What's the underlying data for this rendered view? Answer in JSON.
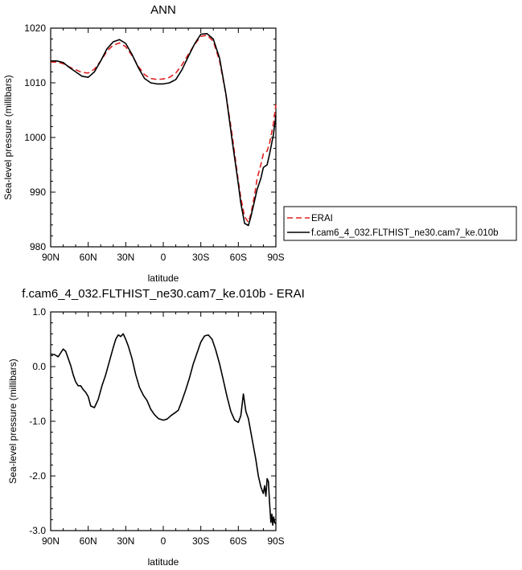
{
  "chart_data": [
    {
      "type": "line",
      "title": "ANN",
      "xlabel": "latitude",
      "ylabel": "Sea-level pressure (millibars)",
      "x_ticks": [
        {
          "x": 90,
          "label": "90N"
        },
        {
          "x": 60,
          "label": "60N"
        },
        {
          "x": 30,
          "label": "30N"
        },
        {
          "x": 0,
          "label": "0"
        },
        {
          "x": -30,
          "label": "30S"
        },
        {
          "x": -60,
          "label": "60S"
        },
        {
          "x": -90,
          "label": "90S"
        }
      ],
      "y_ticks": [
        {
          "y": 1020,
          "label": "1020"
        },
        {
          "y": 1010,
          "label": "1010"
        },
        {
          "y": 1000,
          "label": "1000"
        },
        {
          "y": 990,
          "label": "990"
        },
        {
          "y": 980,
          "label": "980"
        }
      ],
      "xlim": [
        90,
        -90
      ],
      "ylim": [
        980,
        1020
      ],
      "legend_position": "right",
      "series": [
        {
          "name": "ERAI",
          "color": "#e02020",
          "dash": "dashed",
          "x": [
            90,
            85,
            80,
            75,
            70,
            65,
            60,
            55,
            50,
            45,
            40,
            35,
            30,
            25,
            20,
            15,
            10,
            5,
            0,
            -5,
            -10,
            -15,
            -20,
            -25,
            -30,
            -35,
            -40,
            -45,
            -50,
            -55,
            -60,
            -62,
            -65,
            -68,
            -70,
            -73,
            -75,
            -78,
            -80,
            -83,
            -85,
            -88,
            -90
          ],
          "y": [
            1013.8,
            1013.8,
            1013.5,
            1012.9,
            1012.4,
            1011.9,
            1011.8,
            1012.5,
            1014.0,
            1015.8,
            1016.9,
            1017.3,
            1016.6,
            1015.0,
            1013.0,
            1011.5,
            1010.8,
            1010.6,
            1010.7,
            1011.0,
            1011.8,
            1013.3,
            1015.2,
            1017.0,
            1018.5,
            1018.7,
            1017.6,
            1014.0,
            1008.0,
            1000.5,
            992.0,
            989.0,
            985.5,
            984.5,
            986.0,
            989.5,
            992.5,
            995.0,
            997.0,
            997.5,
            999.0,
            1002.5,
            1006.0
          ]
        },
        {
          "name": "f.cam6_4_032.FLTHIST_ne30.cam7_ke.010b",
          "color": "#000000",
          "dash": "solid",
          "x": [
            90,
            85,
            80,
            75,
            70,
            65,
            60,
            55,
            50,
            45,
            40,
            35,
            30,
            25,
            20,
            15,
            10,
            5,
            0,
            -5,
            -10,
            -15,
            -20,
            -25,
            -30,
            -35,
            -40,
            -45,
            -50,
            -55,
            -60,
            -62,
            -65,
            -68,
            -70,
            -73,
            -75,
            -78,
            -80,
            -83,
            -85,
            -88,
            -90
          ],
          "y": [
            1014.0,
            1014.0,
            1013.7,
            1012.8,
            1012.0,
            1011.2,
            1011.0,
            1012.0,
            1014.0,
            1016.2,
            1017.5,
            1017.9,
            1017.2,
            1015.2,
            1012.8,
            1010.8,
            1010.0,
            1009.8,
            1009.8,
            1010.0,
            1010.6,
            1012.4,
            1014.8,
            1017.1,
            1018.9,
            1019.0,
            1018.0,
            1014.5,
            1008.0,
            999.5,
            991.5,
            988.0,
            984.3,
            983.9,
            985.5,
            988.5,
            990.5,
            992.5,
            994.5,
            995.0,
            997.0,
            1000.5,
            1004.0
          ]
        }
      ]
    },
    {
      "type": "line",
      "title": "f.cam6_4_032.FLTHIST_ne30.cam7_ke.010b - ERAI",
      "xlabel": "latitude",
      "ylabel": "Sea-level pressure (millibars)",
      "x_ticks": [
        {
          "x": 90,
          "label": "90N"
        },
        {
          "x": 60,
          "label": "60N"
        },
        {
          "x": 30,
          "label": "30N"
        },
        {
          "x": 0,
          "label": "0"
        },
        {
          "x": -30,
          "label": "30S"
        },
        {
          "x": -60,
          "label": "60S"
        },
        {
          "x": -90,
          "label": "90S"
        }
      ],
      "y_ticks": [
        {
          "y": 1.0,
          "label": "1.0"
        },
        {
          "y": 0.0,
          "label": "0.0"
        },
        {
          "y": -1.0,
          "label": "-1.0"
        },
        {
          "y": -2.0,
          "label": "-2.0"
        },
        {
          "y": -3.0,
          "label": "-3.0"
        }
      ],
      "xlim": [
        90,
        -90
      ],
      "ylim": [
        -3.0,
        1.0
      ],
      "series": [
        {
          "color": "#000000",
          "dash": "solid",
          "x": [
            90,
            87,
            84,
            82,
            80,
            78,
            76,
            74,
            72,
            70,
            68,
            66,
            64,
            62,
            60,
            58,
            55,
            52,
            49,
            46,
            43,
            40,
            38,
            36,
            34,
            32,
            30,
            28,
            25,
            22,
            19,
            16,
            13,
            10,
            7,
            4,
            0,
            -3,
            -6,
            -9,
            -12,
            -15,
            -18,
            -21,
            -24,
            -27,
            -30,
            -33,
            -36,
            -39,
            -42,
            -45,
            -48,
            -51,
            -54,
            -57,
            -60,
            -62,
            -64,
            -66,
            -68,
            -70,
            -72,
            -74,
            -76,
            -78,
            -80,
            -81,
            -82,
            -83,
            -84,
            -85,
            -86,
            -86.8,
            -87.5,
            -88.2,
            -89,
            -90
          ],
          "y": [
            0.23,
            0.22,
            0.18,
            0.25,
            0.32,
            0.28,
            0.15,
            0.02,
            -0.15,
            -0.28,
            -0.35,
            -0.35,
            -0.42,
            -0.47,
            -0.55,
            -0.72,
            -0.75,
            -0.6,
            -0.35,
            -0.15,
            0.1,
            0.35,
            0.5,
            0.58,
            0.55,
            0.6,
            0.5,
            0.38,
            0.15,
            -0.15,
            -0.38,
            -0.52,
            -0.62,
            -0.78,
            -0.88,
            -0.95,
            -0.98,
            -0.96,
            -0.9,
            -0.85,
            -0.8,
            -0.62,
            -0.42,
            -0.2,
            0.05,
            0.25,
            0.45,
            0.56,
            0.58,
            0.5,
            0.3,
            0.05,
            -0.25,
            -0.55,
            -0.82,
            -0.98,
            -1.02,
            -0.9,
            -0.5,
            -0.82,
            -0.95,
            -1.2,
            -1.45,
            -1.7,
            -2.0,
            -2.2,
            -2.32,
            -2.18,
            -2.37,
            -2.05,
            -2.1,
            -2.5,
            -2.85,
            -2.7,
            -2.9,
            -2.75,
            -2.85,
            -2.88
          ]
        }
      ]
    }
  ]
}
